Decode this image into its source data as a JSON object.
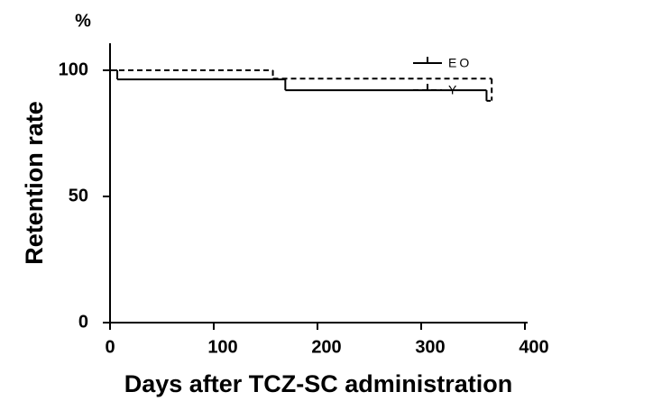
{
  "chart_data": {
    "type": "line",
    "step": "post",
    "y_unit": "%",
    "y_label": "Retention rate",
    "x_label": "Days after TCZ-SC administration",
    "xlim": [
      0,
      400
    ],
    "xticks": [
      0,
      100,
      200,
      300,
      400
    ],
    "ylim": [
      0,
      110
    ],
    "yticks": [
      0,
      50,
      100
    ],
    "series": [
      {
        "name": "EO",
        "color": "#000000",
        "dash": "solid",
        "x": [
          0,
          7,
          169,
          363,
          367
        ],
        "values": [
          100,
          96.4,
          92.1,
          87.9,
          87.9
        ]
      },
      {
        "name": "Y",
        "color": "#000000",
        "dash": "dashed",
        "x": [
          0,
          157,
          368
        ],
        "values": [
          100,
          96.7,
          88
        ]
      }
    ]
  }
}
